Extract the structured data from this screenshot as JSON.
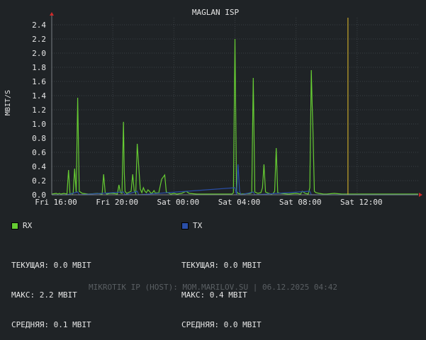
{
  "chart_data": {
    "type": "line",
    "title": "MAGLAN ISP",
    "ylabel": "MBIT/S",
    "xlabel": "",
    "ylim": [
      0,
      2.5
    ],
    "yticks": [
      0.0,
      0.2,
      0.4,
      0.6,
      0.8,
      1.0,
      1.2,
      1.4,
      1.6,
      1.8,
      2.0,
      2.2,
      2.4
    ],
    "ytick_labels": [
      "0.0",
      "0.2",
      "0.4",
      "0.6",
      "0.8",
      "1.0",
      "1.2",
      "1.4",
      "1.6",
      "1.8",
      "2.0",
      "2.2",
      "2.4"
    ],
    "xlim": [
      0,
      24
    ],
    "xticks": [
      0,
      4,
      8,
      12,
      16,
      20
    ],
    "xtick_labels": [
      "Fri 16:00",
      "Fri 20:00",
      "Sat 00:00",
      "Sat 04:00",
      "Sat 08:00",
      "Sat 12:00"
    ],
    "grid": true,
    "now_marker_x": 19.4,
    "series": [
      {
        "name": "RX",
        "color": "#66cc33",
        "x": [
          0,
          0.3,
          0.4,
          0.5,
          0.6,
          0.8,
          1.0,
          1.1,
          1.2,
          1.3,
          1.35,
          1.4,
          1.5,
          1.6,
          1.7,
          1.8,
          2.0,
          2.4,
          3.0,
          3.3,
          3.4,
          3.5,
          3.6,
          3.8,
          4.0,
          4.3,
          4.4,
          4.5,
          4.6,
          4.7,
          4.75,
          4.8,
          4.9,
          5.0,
          5.2,
          5.3,
          5.4,
          5.5,
          5.6,
          5.8,
          5.9,
          6.0,
          6.1,
          6.2,
          6.3,
          6.4,
          6.5,
          6.6,
          6.7,
          6.8,
          6.9,
          7.0,
          7.2,
          7.4,
          7.5,
          7.6,
          7.7,
          7.8,
          8.0,
          8.2,
          8.5,
          8.8,
          9.0,
          9.5,
          10.0,
          11.0,
          11.8,
          11.9,
          12.0,
          12.1,
          12.2,
          12.4,
          13.0,
          13.1,
          13.2,
          13.3,
          13.5,
          13.7,
          13.8,
          13.9,
          14.0,
          14.2,
          14.4,
          14.5,
          14.6,
          14.7,
          14.8,
          15.0,
          15.5,
          16.0,
          16.3,
          16.4,
          16.6,
          16.8,
          16.9,
          17.0,
          17.05,
          17.1,
          17.2,
          17.3,
          17.5,
          17.8,
          18.0,
          18.5,
          19.0,
          20.0,
          20.5,
          21.0,
          22.0,
          24.0
        ],
        "values": [
          0.01,
          0.02,
          0.01,
          0.02,
          0.01,
          0.02,
          0.01,
          0.35,
          0.01,
          0.02,
          0.01,
          0.02,
          0.37,
          0.03,
          1.37,
          0.05,
          0.02,
          0.01,
          0.02,
          0.01,
          0.29,
          0.03,
          0.01,
          0.02,
          0.02,
          0.01,
          0.14,
          0.03,
          0.02,
          1.03,
          0.32,
          0.05,
          0.02,
          0.03,
          0.05,
          0.29,
          0.06,
          0.02,
          0.72,
          0.08,
          0.03,
          0.1,
          0.05,
          0.03,
          0.07,
          0.05,
          0.02,
          0.03,
          0.06,
          0.02,
          0.03,
          0.02,
          0.22,
          0.28,
          0.04,
          0.03,
          0.02,
          0.01,
          0.02,
          0.01,
          0.02,
          0.05,
          0.02,
          0.01,
          0.01,
          0.01,
          0.01,
          0.03,
          2.2,
          0.05,
          0.02,
          0.01,
          0.02,
          0.03,
          1.65,
          0.04,
          0.02,
          0.03,
          0.1,
          0.43,
          0.04,
          0.02,
          0.01,
          0.02,
          0.05,
          0.66,
          0.03,
          0.02,
          0.01,
          0.02,
          0.01,
          0.05,
          0.02,
          0.01,
          0.1,
          1.76,
          1.3,
          0.95,
          0.05,
          0.03,
          0.02,
          0.01,
          0.01,
          0.02,
          0.01,
          0.01,
          0.01,
          0.01,
          0.01,
          0.01
        ]
      },
      {
        "name": "TX",
        "color": "#2a4fa8",
        "x": [
          0,
          1.0,
          1.7,
          1.8,
          4.7,
          4.8,
          5.6,
          5.7,
          12.0,
          12.1,
          12.2,
          12.3,
          12.4,
          13.2,
          13.3,
          16.9,
          17.0,
          24.0
        ],
        "values": [
          0.0,
          0.0,
          0.04,
          0.0,
          0.04,
          0.0,
          0.05,
          0.0,
          0.1,
          0.0,
          0.43,
          0.05,
          0.0,
          0.04,
          0.0,
          0.05,
          0.0,
          0.0
        ]
      }
    ]
  },
  "legend": {
    "rx": {
      "label": "RX",
      "color": "#66cc33",
      "current": "ТЕКУЩАЯ: 0.0 MBIT",
      "max": "МАКС: 2.2 MBIT",
      "avg": "СРЕДНЯЯ: 0.1 MBIT"
    },
    "tx": {
      "label": "TX",
      "color": "#2a4fa8",
      "current": "ТЕКУЩАЯ: 0.0 MBIT",
      "max": "МАКС: 0.4 MBIT",
      "avg": "СРЕДНЯЯ: 0.0 MBIT"
    }
  },
  "footer": "MIKROTIK IP (HOST): MOM.MARILOV.SU | 06.12.2025 04:42"
}
